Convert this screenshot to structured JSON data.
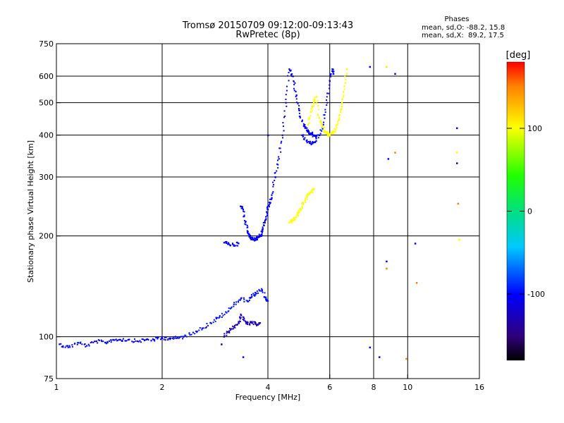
{
  "chart_data": {
    "type": "scatter",
    "title": "Tromsø 20150709 09:12:00-09:13:43",
    "subtitle": "RwPretec (8p)",
    "xlabel": "Frequency [MHz]",
    "ylabel": "Stationary phase Virtual Height [km]",
    "x_scale": "log",
    "y_scale": "log",
    "xlim": [
      1,
      16
    ],
    "ylim": [
      75,
      750
    ],
    "x_ticks": [
      1,
      2,
      4,
      6,
      8,
      10,
      16
    ],
    "y_ticks": [
      75,
      100,
      200,
      300,
      400,
      500,
      600,
      750
    ],
    "grid": true,
    "colorbar": {
      "label": "[deg]",
      "range": [
        -180,
        180
      ],
      "ticks": [
        100,
        0,
        -100
      ]
    },
    "phases": {
      "title": "Phases",
      "o_line": "mean, sd,O: -88.2, 15.8",
      "x_line": "mean, sd,X:  89.2, 17.5"
    },
    "traces": [
      {
        "mode": "O",
        "phase": -100,
        "x": [
          1.02,
          1.08,
          1.15,
          1.22,
          1.3,
          1.38,
          1.45,
          1.52,
          1.6,
          1.7,
          1.8,
          1.9,
          2.0,
          2.1,
          2.2,
          2.3
        ],
        "y": [
          95,
          93,
          96,
          94,
          97,
          96,
          98,
          98,
          98,
          97,
          98,
          98,
          99,
          99,
          99,
          100
        ]
      },
      {
        "mode": "O",
        "phase": -95,
        "x": [
          2.3,
          2.45,
          2.6,
          2.75,
          2.9,
          3.05,
          3.2,
          3.35,
          3.5,
          3.6,
          3.7,
          3.85,
          3.95,
          4.0
        ],
        "y": [
          100,
          103,
          106,
          110,
          114,
          118,
          125,
          130,
          128,
          132,
          135,
          138,
          130,
          128
        ]
      },
      {
        "mode": "O",
        "phase": -125,
        "x": [
          3.0,
          3.1,
          3.2,
          3.3,
          3.35,
          3.42,
          3.5,
          3.6,
          3.7,
          3.8
        ],
        "y": [
          100,
          104,
          107,
          110,
          116,
          112,
          109,
          110,
          109,
          110
        ]
      },
      {
        "mode": "O",
        "phase": -100,
        "x": [
          3.0,
          3.1,
          3.2,
          3.3
        ],
        "y": [
          191,
          189,
          188,
          190
        ]
      },
      {
        "mode": "O",
        "phase": -100,
        "x": [
          3.35,
          3.4,
          3.45,
          3.5,
          3.55,
          3.6,
          3.65,
          3.7,
          3.75,
          3.8,
          3.85,
          3.9,
          3.95,
          4.0,
          4.05,
          4.1
        ],
        "y": [
          245,
          240,
          220,
          205,
          200,
          196,
          195,
          196,
          198,
          200,
          205,
          215,
          225,
          240,
          250,
          260
        ]
      },
      {
        "mode": "O",
        "phase": -100,
        "x": [
          4.1,
          4.2,
          4.3,
          4.4,
          4.5,
          4.6,
          4.7,
          4.8,
          4.9,
          5.0,
          5.1,
          5.2,
          5.3,
          5.4,
          5.5
        ],
        "y": [
          265,
          300,
          340,
          400,
          500,
          630,
          600,
          540,
          480,
          440,
          420,
          410,
          405,
          400,
          398
        ]
      },
      {
        "mode": "O",
        "phase": -100,
        "x": [
          5.0,
          5.15,
          5.3,
          5.45,
          5.6,
          5.75,
          5.9,
          6.0,
          6.1,
          6.15
        ],
        "y": [
          400,
          385,
          378,
          382,
          400,
          430,
          500,
          580,
          630,
          610
        ]
      },
      {
        "mode": "X",
        "phase": 100,
        "x": [
          4.6,
          4.7,
          4.8,
          4.9,
          5.0,
          5.1,
          5.2,
          5.3,
          5.4
        ],
        "y": [
          220,
          222,
          228,
          235,
          245,
          255,
          265,
          270,
          275
        ]
      },
      {
        "mode": "X",
        "phase": 100,
        "x": [
          5.2,
          5.3,
          5.4,
          5.5,
          5.6,
          5.7,
          5.8,
          5.9,
          6.0,
          6.1,
          6.2,
          6.3,
          6.4,
          6.5,
          6.6,
          6.7
        ],
        "y": [
          430,
          470,
          500,
          520,
          450,
          430,
          410,
          405,
          400,
          405,
          410,
          430,
          460,
          500,
          560,
          630
        ]
      }
    ],
    "outliers": [
      {
        "x": 7.8,
        "y": 640,
        "phase": -100
      },
      {
        "x": 8.7,
        "y": 640,
        "phase": 110
      },
      {
        "x": 9.2,
        "y": 610,
        "phase": -120
      },
      {
        "x": 8.8,
        "y": 340,
        "phase": -100
      },
      {
        "x": 9.2,
        "y": 355,
        "phase": 150
      },
      {
        "x": 13.8,
        "y": 420,
        "phase": -100
      },
      {
        "x": 13.8,
        "y": 355,
        "phase": 100
      },
      {
        "x": 13.8,
        "y": 330,
        "phase": -130
      },
      {
        "x": 13.9,
        "y": 250,
        "phase": 150
      },
      {
        "x": 14.0,
        "y": 195,
        "phase": 100
      },
      {
        "x": 10.5,
        "y": 190,
        "phase": -100
      },
      {
        "x": 8.7,
        "y": 168,
        "phase": -110
      },
      {
        "x": 8.7,
        "y": 160,
        "phase": 150
      },
      {
        "x": 10.6,
        "y": 145,
        "phase": 150
      },
      {
        "x": 7.8,
        "y": 93,
        "phase": -100
      },
      {
        "x": 8.3,
        "y": 87,
        "phase": -100
      },
      {
        "x": 9.9,
        "y": 86,
        "phase": 150
      },
      {
        "x": 2.95,
        "y": 95,
        "phase": -100
      },
      {
        "x": 3.4,
        "y": 87,
        "phase": -100
      },
      {
        "x": 4.0,
        "y": 400,
        "phase": -100
      }
    ]
  }
}
